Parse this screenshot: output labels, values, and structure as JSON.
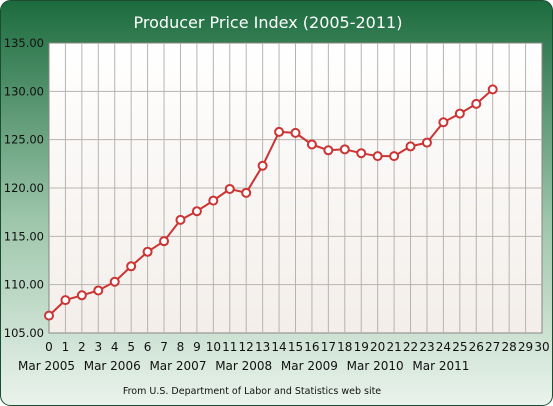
{
  "chart_data": {
    "type": "line",
    "title": "Producer Price Index (2005-2011)",
    "source_note": "From U.S. Department of Labor and Statistics web site",
    "xlabel": "",
    "ylabel": "",
    "xlim": [
      0,
      30
    ],
    "ylim": [
      105,
      135
    ],
    "x_ticks": [
      0,
      1,
      2,
      3,
      4,
      5,
      6,
      7,
      8,
      9,
      10,
      11,
      12,
      13,
      14,
      15,
      16,
      17,
      18,
      19,
      20,
      21,
      22,
      23,
      24,
      25,
      26,
      27,
      28,
      29,
      30
    ],
    "x_tick_labels": [
      "0",
      "1",
      "2",
      "3",
      "4",
      "5",
      "6",
      "7",
      "8",
      "9",
      "10",
      "11",
      "12",
      "13",
      "14",
      "15",
      "16",
      "17",
      "18",
      "19",
      "20",
      "21",
      "22",
      "23",
      "24",
      "25",
      "26",
      "27",
      "28",
      "29",
      "30"
    ],
    "y_ticks": [
      105,
      110,
      115,
      120,
      125,
      130,
      135
    ],
    "y_tick_labels": [
      "105.00",
      "110.00",
      "115.00",
      "120.00",
      "125.00",
      "130.00",
      "135.00"
    ],
    "x_category_labels": [
      {
        "x": 0,
        "label": "Mar 2005"
      },
      {
        "x": 4,
        "label": "Mar 2006"
      },
      {
        "x": 8,
        "label": "Mar 2007"
      },
      {
        "x": 12,
        "label": "Mar 2008"
      },
      {
        "x": 16,
        "label": "Mar 2009"
      },
      {
        "x": 20,
        "label": "Mar 2010"
      },
      {
        "x": 24,
        "label": "Mar 2011"
      }
    ],
    "grid": true,
    "series": [
      {
        "color": "#cc3333",
        "x": [
          0,
          1,
          2,
          3,
          4,
          5,
          6,
          7,
          8,
          9,
          10,
          11,
          12,
          13,
          14,
          15,
          16,
          17,
          18,
          19,
          20,
          21,
          22,
          23,
          24,
          25,
          26,
          27
        ],
        "y": [
          106.8,
          108.4,
          108.9,
          109.4,
          110.3,
          111.9,
          113.4,
          114.5,
          116.7,
          117.6,
          118.7,
          119.9,
          119.5,
          122.3,
          125.8,
          125.7,
          124.5,
          123.9,
          124.0,
          123.6,
          123.3,
          123.3,
          124.3,
          124.7,
          126.8,
          127.7,
          128.7,
          130.2
        ]
      }
    ],
    "colors": {
      "frame_dark": "#1b6b3e",
      "frame_light": "#eaf3ec",
      "plot_background_top": "#ffffff",
      "plot_background_bottom": "#f3eeea",
      "grid": "#b9b3ae",
      "line": "#cc3333",
      "marker_fill": "#ffffff",
      "title_text": "#ffffff",
      "axis_text": "#111111"
    }
  }
}
